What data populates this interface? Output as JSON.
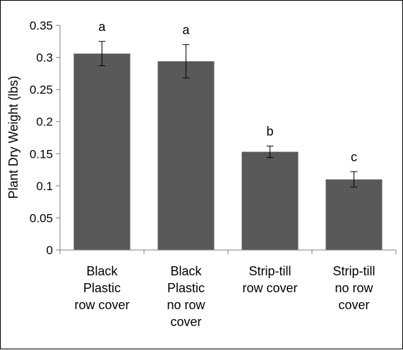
{
  "chart_data": {
    "type": "bar",
    "ylabel": "Plant Dry Weight (lbs)",
    "xlabel": "",
    "ylim": [
      0,
      0.35
    ],
    "yticks": [
      {
        "value": 0,
        "label": "0"
      },
      {
        "value": 0.05,
        "label": "0.05"
      },
      {
        "value": 0.1,
        "label": "0.1"
      },
      {
        "value": 0.15,
        "label": "0.15"
      },
      {
        "value": 0.2,
        "label": "0.2"
      },
      {
        "value": 0.25,
        "label": "0.25"
      },
      {
        "value": 0.3,
        "label": "0.3"
      },
      {
        "value": 0.35,
        "label": "0.35"
      }
    ],
    "categories": [
      [
        "Black",
        "Plastic",
        "row cover"
      ],
      [
        "Black",
        "Plastic",
        "no row",
        "cover"
      ],
      [
        "Strip-till",
        "row cover"
      ],
      [
        "Strip-till",
        "no row",
        "cover"
      ]
    ],
    "values": [
      0.306,
      0.294,
      0.153,
      0.11
    ],
    "errors": [
      0.019,
      0.026,
      0.009,
      0.012
    ],
    "significance_labels": [
      "a",
      "a",
      "b",
      "c"
    ],
    "bar_color": "#595959",
    "grid": false,
    "legend": "none"
  }
}
